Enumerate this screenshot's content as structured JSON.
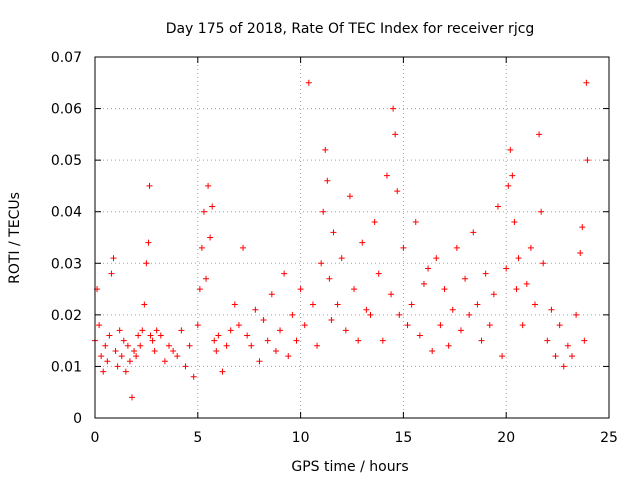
{
  "chart_data": {
    "type": "scatter",
    "title": "Day 175 of 2018, Rate Of TEC Index for receiver rjcg",
    "xlabel": "GPS time / hours",
    "ylabel": "ROTI / TECUs",
    "xlim": [
      0,
      25
    ],
    "ylim": [
      0,
      0.07
    ],
    "x_ticks": [
      0,
      5,
      10,
      15,
      20,
      25
    ],
    "x_tick_labels": [
      "0",
      "5",
      "10",
      "15",
      "20",
      "25"
    ],
    "y_ticks": [
      0,
      0.01,
      0.02,
      0.03,
      0.04,
      0.05,
      0.06,
      0.07
    ],
    "y_tick_labels": [
      "0",
      "0.01",
      "0.02",
      "0.03",
      "0.04",
      "0.05",
      "0.06",
      "0.07"
    ],
    "grid": true,
    "marker": "+",
    "series": [
      {
        "name": "ROTI",
        "color": "#ff0000",
        "x": [
          0.0,
          0.1,
          0.2,
          0.3,
          0.4,
          0.5,
          0.6,
          0.7,
          0.8,
          0.9,
          1.0,
          1.1,
          1.2,
          1.3,
          1.4,
          1.5,
          1.6,
          1.7,
          1.8,
          1.9,
          2.0,
          2.1,
          2.2,
          2.3,
          2.4,
          2.5,
          2.6,
          2.65,
          2.7,
          2.8,
          2.9,
          3.0,
          3.2,
          3.4,
          3.6,
          3.8,
          4.0,
          4.2,
          4.4,
          4.6,
          4.8,
          5.0,
          5.1,
          5.2,
          5.3,
          5.4,
          5.5,
          5.6,
          5.7,
          5.8,
          5.9,
          6.0,
          6.2,
          6.4,
          6.6,
          6.8,
          7.0,
          7.2,
          7.4,
          7.6,
          7.8,
          8.0,
          8.2,
          8.4,
          8.6,
          8.8,
          9.0,
          9.2,
          9.4,
          9.6,
          9.8,
          10.0,
          10.2,
          10.4,
          10.6,
          10.8,
          11.0,
          11.1,
          11.2,
          11.3,
          11.4,
          11.5,
          11.6,
          11.8,
          12.0,
          12.2,
          12.4,
          12.6,
          12.8,
          13.0,
          13.2,
          13.4,
          13.6,
          13.8,
          14.0,
          14.2,
          14.4,
          14.5,
          14.6,
          14.7,
          14.8,
          15.0,
          15.2,
          15.4,
          15.6,
          15.8,
          16.0,
          16.2,
          16.4,
          16.6,
          16.8,
          17.0,
          17.2,
          17.4,
          17.6,
          17.8,
          18.0,
          18.2,
          18.4,
          18.6,
          18.8,
          19.0,
          19.2,
          19.4,
          19.6,
          19.8,
          20.0,
          20.1,
          20.2,
          20.3,
          20.4,
          20.5,
          20.6,
          20.8,
          21.0,
          21.2,
          21.4,
          21.6,
          21.7,
          21.8,
          22.0,
          22.2,
          22.4,
          22.6,
          22.8,
          23.0,
          23.2,
          23.4,
          23.6,
          23.7,
          23.8,
          23.9,
          23.95
        ],
        "y": [
          0.015,
          0.025,
          0.018,
          0.012,
          0.009,
          0.014,
          0.011,
          0.016,
          0.028,
          0.031,
          0.013,
          0.01,
          0.017,
          0.012,
          0.015,
          0.009,
          0.014,
          0.011,
          0.004,
          0.013,
          0.012,
          0.016,
          0.014,
          0.017,
          0.022,
          0.03,
          0.034,
          0.045,
          0.016,
          0.015,
          0.013,
          0.017,
          0.016,
          0.011,
          0.014,
          0.013,
          0.012,
          0.017,
          0.01,
          0.014,
          0.008,
          0.018,
          0.025,
          0.033,
          0.04,
          0.027,
          0.045,
          0.035,
          0.041,
          0.015,
          0.013,
          0.016,
          0.009,
          0.014,
          0.017,
          0.022,
          0.018,
          0.033,
          0.016,
          0.014,
          0.021,
          0.011,
          0.019,
          0.015,
          0.024,
          0.013,
          0.017,
          0.028,
          0.012,
          0.02,
          0.015,
          0.025,
          0.018,
          0.065,
          0.022,
          0.014,
          0.03,
          0.04,
          0.052,
          0.046,
          0.027,
          0.019,
          0.036,
          0.022,
          0.031,
          0.017,
          0.043,
          0.025,
          0.015,
          0.034,
          0.021,
          0.02,
          0.038,
          0.028,
          0.015,
          0.047,
          0.024,
          0.06,
          0.055,
          0.044,
          0.02,
          0.033,
          0.018,
          0.022,
          0.038,
          0.016,
          0.026,
          0.029,
          0.013,
          0.031,
          0.018,
          0.025,
          0.014,
          0.021,
          0.033,
          0.017,
          0.027,
          0.02,
          0.036,
          0.022,
          0.015,
          0.028,
          0.018,
          0.024,
          0.041,
          0.012,
          0.029,
          0.045,
          0.052,
          0.047,
          0.038,
          0.025,
          0.031,
          0.018,
          0.026,
          0.033,
          0.022,
          0.055,
          0.04,
          0.03,
          0.015,
          0.021,
          0.012,
          0.018,
          0.01,
          0.014,
          0.012,
          0.02,
          0.032,
          0.037,
          0.015,
          0.065,
          0.05
        ]
      }
    ]
  }
}
